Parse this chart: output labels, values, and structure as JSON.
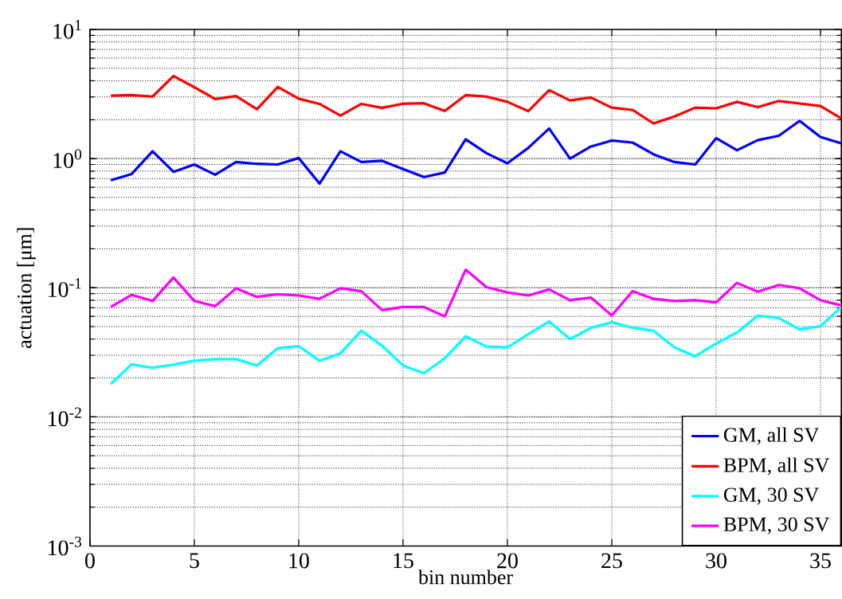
{
  "chart_data": {
    "type": "line",
    "xlabel": "bin number",
    "ylabel": "actuation [μm]",
    "x": [
      1,
      2,
      3,
      4,
      5,
      6,
      7,
      8,
      9,
      10,
      11,
      12,
      13,
      14,
      15,
      16,
      17,
      18,
      19,
      20,
      21,
      22,
      23,
      24,
      25,
      26,
      27,
      28,
      29,
      30,
      31,
      32,
      33,
      34,
      35,
      36
    ],
    "series": [
      {
        "name": "GM, all SV",
        "color": "#0000ff",
        "values": [
          0.68,
          0.76,
          1.14,
          0.79,
          0.9,
          0.75,
          0.94,
          0.91,
          0.9,
          1.01,
          0.64,
          1.14,
          0.94,
          0.96,
          0.83,
          0.72,
          0.78,
          1.41,
          1.1,
          0.92,
          1.21,
          1.71,
          1.0,
          1.24,
          1.38,
          1.33,
          1.08,
          0.94,
          0.9,
          1.44,
          1.16,
          1.39,
          1.5,
          1.96,
          1.47,
          1.31
        ]
      },
      {
        "name": "BPM, all SV",
        "color": "#ff0000",
        "values": [
          3.07,
          3.1,
          3.02,
          4.36,
          3.57,
          2.89,
          3.05,
          2.41,
          3.59,
          2.91,
          2.65,
          2.15,
          2.65,
          2.47,
          2.66,
          2.68,
          2.34,
          3.1,
          3.02,
          2.75,
          2.33,
          3.39,
          2.82,
          2.97,
          2.48,
          2.38,
          1.87,
          2.12,
          2.48,
          2.45,
          2.75,
          2.5,
          2.79,
          2.67,
          2.55,
          2.05
        ]
      },
      {
        "name": "GM, 30 SV",
        "color": "#00ffff",
        "values": [
          0.018,
          0.0255,
          0.024,
          0.0254,
          0.0272,
          0.028,
          0.028,
          0.025,
          0.034,
          0.0353,
          0.0272,
          0.031,
          0.0465,
          0.0355,
          0.025,
          0.0218,
          0.0284,
          0.042,
          0.035,
          0.0345,
          0.0437,
          0.0548,
          0.04,
          0.0489,
          0.054,
          0.049,
          0.0465,
          0.0346,
          0.0294,
          0.037,
          0.045,
          0.0608,
          0.0583,
          0.0475,
          0.0503,
          0.071
        ]
      },
      {
        "name": "BPM, 30 SV",
        "color": "#ff00ff",
        "values": [
          0.071,
          0.088,
          0.079,
          0.12,
          0.079,
          0.072,
          0.099,
          0.085,
          0.089,
          0.087,
          0.082,
          0.099,
          0.094,
          0.067,
          0.071,
          0.071,
          0.06,
          0.138,
          0.101,
          0.092,
          0.087,
          0.097,
          0.08,
          0.084,
          0.061,
          0.094,
          0.082,
          0.079,
          0.08,
          0.077,
          0.109,
          0.093,
          0.105,
          0.099,
          0.08,
          0.073
        ]
      }
    ],
    "xlim": [
      0,
      36
    ],
    "xticks": [
      0,
      5,
      10,
      15,
      20,
      25,
      30,
      35
    ],
    "ylim": [
      0.001,
      10
    ],
    "log": "y",
    "yticks": [
      {
        "value": 0.001,
        "label": "10$^{-3}$"
      },
      {
        "value": 0.01,
        "label": "10$^{-2}$"
      },
      {
        "value": 0.1,
        "label": "10$^{-1}$"
      },
      {
        "value": 1,
        "label": "10$^{0}$"
      },
      {
        "value": 10,
        "label": "10$^{1}$"
      }
    ],
    "grid": true,
    "legend": "bottom right",
    "marker": "none",
    "line_style": "solid"
  }
}
